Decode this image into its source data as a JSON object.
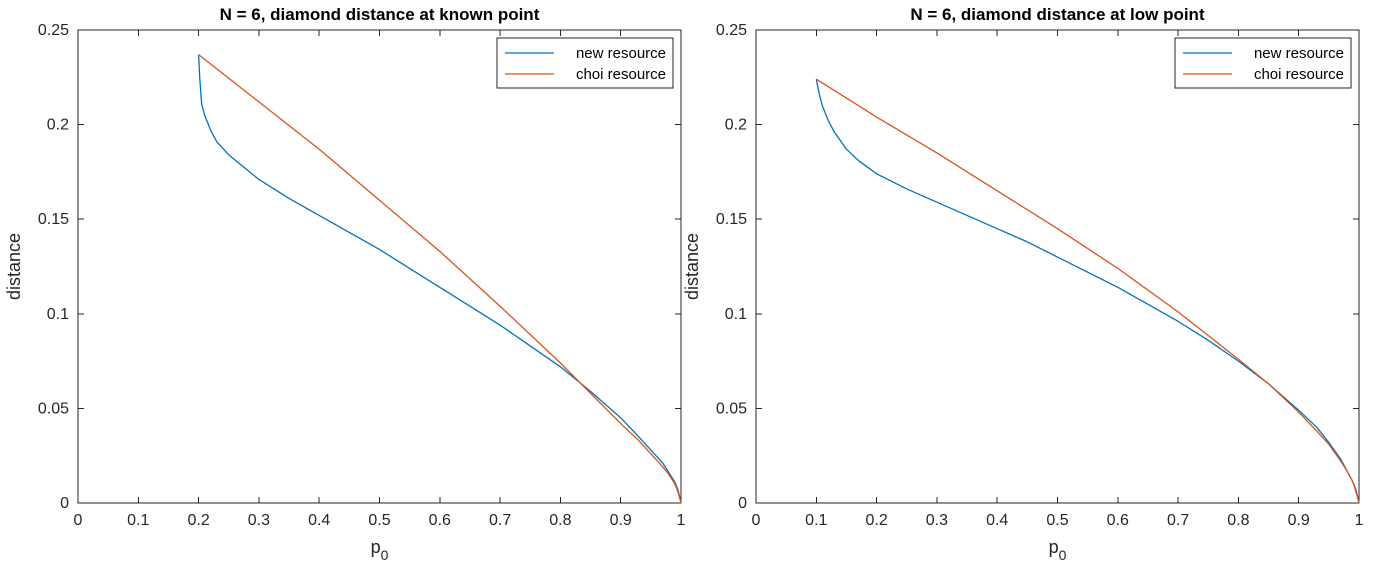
{
  "chart_data": [
    {
      "type": "line",
      "title": "N = 6, diamond distance at known point",
      "xlabel": "p",
      "xlabel_sub": "0",
      "ylabel": "distance",
      "xlim": [
        0,
        1
      ],
      "ylim": [
        0,
        0.25
      ],
      "xticks": [
        0,
        0.1,
        0.2,
        0.3,
        0.4,
        0.5,
        0.6,
        0.7,
        0.8,
        0.9,
        1
      ],
      "xtick_labels": [
        "0",
        "0.1",
        "0.2",
        "0.3",
        "0.4",
        "0.5",
        "0.6",
        "0.7",
        "0.8",
        "0.9",
        "1"
      ],
      "yticks": [
        0,
        0.05,
        0.1,
        0.15,
        0.2,
        0.25
      ],
      "ytick_labels": [
        "0",
        "0.05",
        "0.1",
        "0.15",
        "0.2",
        "0.25"
      ],
      "grid": false,
      "legend_position": "top-right",
      "series": [
        {
          "name": "new resource",
          "color": "#0072BD",
          "x": [
            0.2,
            0.202,
            0.205,
            0.21,
            0.22,
            0.23,
            0.25,
            0.3,
            0.35,
            0.4,
            0.45,
            0.5,
            0.55,
            0.6,
            0.65,
            0.7,
            0.75,
            0.8,
            0.85,
            0.9,
            0.93,
            0.95,
            0.97,
            0.98,
            0.99,
            0.995,
            1.0
          ],
          "y": [
            0.237,
            0.224,
            0.211,
            0.205,
            0.197,
            0.191,
            0.184,
            0.171,
            0.161,
            0.152,
            0.143,
            0.134,
            0.124,
            0.114,
            0.104,
            0.094,
            0.083,
            0.072,
            0.059,
            0.045,
            0.035,
            0.028,
            0.021,
            0.016,
            0.011,
            0.007,
            0.0
          ]
        },
        {
          "name": "choi resource",
          "color": "#D95319",
          "x": [
            0.2,
            0.3,
            0.4,
            0.5,
            0.6,
            0.7,
            0.8,
            0.85,
            0.9,
            0.93,
            0.95,
            0.97,
            0.98,
            0.99,
            0.995,
            1.0
          ],
          "y": [
            0.237,
            0.212,
            0.187,
            0.16,
            0.133,
            0.104,
            0.074,
            0.058,
            0.042,
            0.033,
            0.026,
            0.019,
            0.015,
            0.01,
            0.006,
            0.0
          ]
        }
      ]
    },
    {
      "type": "line",
      "title": "N = 6, diamond distance at low point",
      "xlabel": "p",
      "xlabel_sub": "0",
      "ylabel": "distance",
      "xlim": [
        0,
        1
      ],
      "ylim": [
        0,
        0.25
      ],
      "xticks": [
        0,
        0.1,
        0.2,
        0.3,
        0.4,
        0.5,
        0.6,
        0.7,
        0.8,
        0.9,
        1
      ],
      "xtick_labels": [
        "0",
        "0.1",
        "0.2",
        "0.3",
        "0.4",
        "0.5",
        "0.6",
        "0.7",
        "0.8",
        "0.9",
        "1"
      ],
      "yticks": [
        0,
        0.05,
        0.1,
        0.15,
        0.2,
        0.25
      ],
      "ytick_labels": [
        "0",
        "0.05",
        "0.1",
        "0.15",
        "0.2",
        "0.25"
      ],
      "grid": false,
      "legend_position": "top-right",
      "series": [
        {
          "name": "new resource",
          "color": "#0072BD",
          "x": [
            0.1,
            0.105,
            0.11,
            0.12,
            0.13,
            0.15,
            0.17,
            0.2,
            0.25,
            0.3,
            0.35,
            0.4,
            0.45,
            0.5,
            0.55,
            0.6,
            0.65,
            0.7,
            0.75,
            0.8,
            0.85,
            0.9,
            0.93,
            0.95,
            0.97,
            0.98,
            0.99,
            0.995,
            1.0
          ],
          "y": [
            0.224,
            0.216,
            0.21,
            0.202,
            0.196,
            0.187,
            0.181,
            0.174,
            0.166,
            0.159,
            0.152,
            0.145,
            0.138,
            0.13,
            0.122,
            0.114,
            0.105,
            0.096,
            0.086,
            0.075,
            0.063,
            0.049,
            0.04,
            0.032,
            0.023,
            0.017,
            0.011,
            0.007,
            0.0
          ]
        },
        {
          "name": "choi resource",
          "color": "#D95319",
          "x": [
            0.1,
            0.15,
            0.2,
            0.3,
            0.4,
            0.5,
            0.6,
            0.7,
            0.8,
            0.85,
            0.9,
            0.93,
            0.95,
            0.97,
            0.98,
            0.99,
            0.995,
            1.0
          ],
          "y": [
            0.224,
            0.214,
            0.204,
            0.185,
            0.165,
            0.145,
            0.124,
            0.101,
            0.076,
            0.063,
            0.048,
            0.038,
            0.031,
            0.022,
            0.017,
            0.011,
            0.006,
            0.0
          ]
        }
      ]
    }
  ]
}
